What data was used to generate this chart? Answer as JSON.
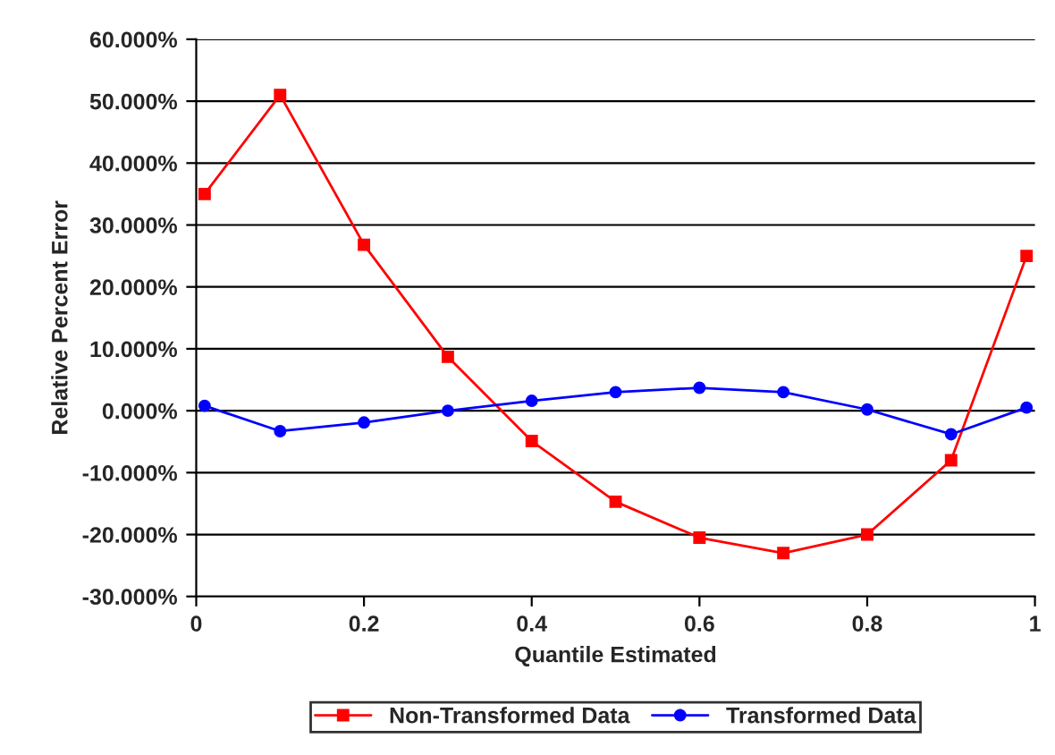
{
  "chart_data": {
    "type": "line",
    "xlabel": "Quantile Estimated",
    "ylabel": "Relative Percent Error",
    "x": [
      0.01,
      0.1,
      0.2,
      0.3,
      0.4,
      0.5,
      0.6,
      0.7,
      0.8,
      0.9,
      0.99
    ],
    "series": [
      {
        "name": "Non-Transformed Data",
        "color": "#ff0000",
        "marker": "square",
        "values": [
          35,
          51,
          26.8,
          8.7,
          -4.9,
          -14.7,
          -20.5,
          -23,
          -20,
          -8,
          25
        ]
      },
      {
        "name": "Transformed Data",
        "color": "#0000ff",
        "marker": "circle",
        "values": [
          0.8,
          -3.3,
          -1.9,
          0,
          1.6,
          3,
          3.7,
          3,
          0.2,
          -3.8,
          0.5
        ]
      }
    ],
    "xlim": [
      0,
      1
    ],
    "xticks": [
      {
        "value": 0,
        "label": "0"
      },
      {
        "value": 0.2,
        "label": "0.2"
      },
      {
        "value": 0.4,
        "label": "0.4"
      },
      {
        "value": 0.6,
        "label": "0.6"
      },
      {
        "value": 0.8,
        "label": "0.8"
      },
      {
        "value": 1,
        "label": "1"
      }
    ],
    "ylim": [
      -30,
      60
    ],
    "yticks": [
      {
        "value": -30,
        "label": "-30.000%"
      },
      {
        "value": -20,
        "label": "-20.000%"
      },
      {
        "value": -10,
        "label": "-10.000%"
      },
      {
        "value": 0,
        "label": "0.000%"
      },
      {
        "value": 10,
        "label": "10.000%"
      },
      {
        "value": 20,
        "label": "20.000%"
      },
      {
        "value": 30,
        "label": "30.000%"
      },
      {
        "value": 40,
        "label": "40.000%"
      },
      {
        "value": 50,
        "label": "50.000%"
      },
      {
        "value": 60,
        "label": "60.000%"
      }
    ],
    "grid": "y",
    "legend": "bottom",
    "line_style": "solid"
  }
}
